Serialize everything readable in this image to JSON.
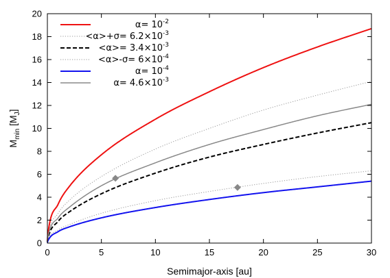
{
  "chart_data": {
    "type": "line",
    "title": "",
    "xlabel": "Semimajor-axis [au]",
    "ylabel": {
      "base": "M",
      "sub": "min",
      "unit_open": " [M",
      "unit_sub": "J",
      "unit_close": "]"
    },
    "xlim": [
      0,
      30
    ],
    "ylim": [
      0,
      20
    ],
    "xticks": [
      0,
      5,
      10,
      15,
      20,
      25,
      30
    ],
    "yticks": [
      0,
      2,
      4,
      6,
      8,
      10,
      12,
      14,
      16,
      18,
      20
    ],
    "grid": false,
    "legend_placement": "top-left",
    "series": [
      {
        "name": {
          "prefix": "α= 10",
          "sup": "-2",
          "suffix": ""
        },
        "color": "#ee1111",
        "style": "solid",
        "width": 2,
        "x": [
          0,
          0.05,
          1,
          2,
          5,
          10,
          15,
          20,
          25,
          30
        ],
        "y": [
          0.2,
          0.8,
          3.4,
          4.9,
          7.7,
          10.8,
          13.2,
          15.3,
          17.1,
          18.7
        ]
      },
      {
        "name": {
          "prefix": "<α>+σ= 6.2×10",
          "sup": "-3",
          "suffix": ""
        },
        "color": "#999999",
        "style": "dotted",
        "width": 1,
        "x": [
          0,
          0.05,
          1,
          2,
          5,
          10,
          15,
          20,
          25,
          30
        ],
        "y": [
          0.15,
          0.6,
          2.6,
          3.7,
          5.8,
          8.2,
          10.0,
          11.6,
          12.9,
          14.1
        ]
      },
      {
        "name": {
          "prefix": "<α>= 3.4×10",
          "sup": "-3",
          "suffix": ""
        },
        "color": "#000000",
        "style": "dashed",
        "width": 2,
        "x": [
          0,
          0.05,
          1,
          2,
          5,
          10,
          15,
          20,
          25,
          30
        ],
        "y": [
          0.1,
          0.4,
          1.9,
          2.7,
          4.3,
          6.1,
          7.5,
          8.6,
          9.6,
          10.5
        ]
      },
      {
        "name": {
          "prefix": "<α>-σ= 6×10",
          "sup": "-4",
          "suffix": ""
        },
        "color": "#999999",
        "style": "dotted",
        "width": 1,
        "x": [
          0,
          0.05,
          1,
          2,
          5,
          10,
          15,
          20,
          25,
          30
        ],
        "y": [
          0.05,
          0.25,
          1.15,
          1.6,
          2.6,
          3.7,
          4.5,
          5.2,
          5.8,
          6.3
        ]
      },
      {
        "name": {
          "prefix": "α= 10",
          "sup": "-4",
          "suffix": ""
        },
        "color": "#1111ee",
        "style": "solid",
        "width": 2,
        "x": [
          0,
          0.05,
          1,
          2,
          5,
          10,
          15,
          20,
          25,
          30
        ],
        "y": [
          0.05,
          0.2,
          1.0,
          1.4,
          2.2,
          3.1,
          3.8,
          4.4,
          4.9,
          5.4
        ]
      },
      {
        "name": {
          "prefix": "α= 4.6×10",
          "sup": "-3",
          "suffix": ""
        },
        "color": "#888888",
        "style": "solid",
        "width": 1.5,
        "x": [
          0,
          0.05,
          1,
          2,
          5,
          10,
          15,
          20,
          25,
          30
        ],
        "y": [
          0.1,
          0.5,
          2.2,
          3.1,
          5.0,
          7.0,
          8.6,
          9.9,
          11.1,
          12.1
        ]
      }
    ],
    "points": [
      {
        "x": 6.3,
        "y": 5.65,
        "marker": "diamond",
        "color": "#888888"
      },
      {
        "x": 17.6,
        "y": 4.85,
        "marker": "diamond",
        "color": "#888888"
      }
    ]
  }
}
